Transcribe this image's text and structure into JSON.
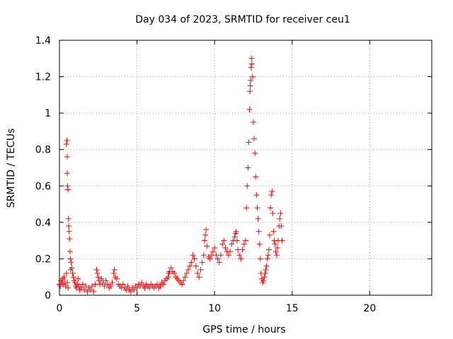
{
  "chart_data": {
    "type": "scatter",
    "title": "Day 034 of 2023, SRMTID for receiver ceu1",
    "xlabel": "GPS time / hours",
    "ylabel": "SRMTID / TECUs",
    "xlim": [
      0,
      24
    ],
    "ylim": [
      0,
      1.4
    ],
    "x_ticks": [
      0,
      5,
      10,
      15,
      20
    ],
    "y_ticks": [
      0,
      0.2,
      0.4,
      0.6,
      0.8,
      1,
      1.2,
      1.4
    ],
    "x_tick_labels": [
      "0",
      "5",
      "10",
      "15",
      "20"
    ],
    "y_tick_labels": [
      "0",
      "0.2",
      "0.4",
      "0.6",
      "0.8",
      "1",
      "1.2",
      "1.4"
    ],
    "grid": true,
    "marker": "plus",
    "series": [
      {
        "name": "SRMTID",
        "color": "#ff0000",
        "points": [
          [
            0.0,
            0.06
          ],
          [
            0.05,
            0.05
          ],
          [
            0.1,
            0.08
          ],
          [
            0.15,
            0.07
          ],
          [
            0.2,
            0.09
          ],
          [
            0.25,
            0.06
          ],
          [
            0.3,
            0.1
          ],
          [
            0.35,
            0.07
          ],
          [
            0.4,
            0.05
          ],
          [
            0.45,
            0.12
          ],
          [
            0.5,
            0.07
          ],
          [
            0.55,
            0.04
          ],
          [
            0.45,
            0.83
          ],
          [
            0.48,
            0.85
          ],
          [
            0.5,
            0.76
          ],
          [
            0.5,
            0.67
          ],
          [
            0.52,
            0.6
          ],
          [
            0.55,
            0.58
          ],
          [
            0.58,
            0.42
          ],
          [
            0.6,
            0.38
          ],
          [
            0.62,
            0.35
          ],
          [
            0.65,
            0.31
          ],
          [
            0.68,
            0.24
          ],
          [
            0.7,
            0.2
          ],
          [
            0.72,
            0.14
          ],
          [
            0.75,
            0.18
          ],
          [
            0.8,
            0.15
          ],
          [
            0.85,
            0.12
          ],
          [
            0.9,
            0.1
          ],
          [
            0.95,
            0.08
          ],
          [
            1.0,
            0.07
          ],
          [
            1.05,
            0.05
          ],
          [
            1.1,
            0.04
          ],
          [
            1.15,
            0.06
          ],
          [
            1.2,
            0.09
          ],
          [
            1.25,
            0.05
          ],
          [
            1.3,
            0.03
          ],
          [
            1.4,
            0.04
          ],
          [
            1.5,
            0.06
          ],
          [
            1.6,
            0.03
          ],
          [
            1.7,
            0.05
          ],
          [
            1.8,
            0.02
          ],
          [
            1.9,
            0.04
          ],
          [
            2.0,
            0.03
          ],
          [
            2.1,
            0.05
          ],
          [
            2.2,
            0.02
          ],
          [
            2.3,
            0.06
          ],
          [
            2.4,
            0.14
          ],
          [
            2.45,
            0.12
          ],
          [
            2.5,
            0.1
          ],
          [
            2.55,
            0.08
          ],
          [
            2.6,
            0.06
          ],
          [
            2.7,
            0.09
          ],
          [
            2.8,
            0.07
          ],
          [
            2.9,
            0.05
          ],
          [
            3.0,
            0.08
          ],
          [
            3.1,
            0.06
          ],
          [
            3.2,
            0.04
          ],
          [
            3.3,
            0.05
          ],
          [
            3.4,
            0.07
          ],
          [
            3.5,
            0.12
          ],
          [
            3.55,
            0.14
          ],
          [
            3.6,
            0.1
          ],
          [
            3.7,
            0.09
          ],
          [
            3.8,
            0.06
          ],
          [
            3.9,
            0.05
          ],
          [
            4.0,
            0.04
          ],
          [
            4.1,
            0.06
          ],
          [
            4.2,
            0.04
          ],
          [
            4.3,
            0.03
          ],
          [
            4.4,
            0.05
          ],
          [
            4.5,
            0.03
          ],
          [
            4.6,
            0.02
          ],
          [
            4.7,
            0.04
          ],
          [
            4.8,
            0.03
          ],
          [
            4.9,
            0.05
          ],
          [
            5.0,
            0.04
          ],
          [
            5.1,
            0.06
          ],
          [
            5.2,
            0.05
          ],
          [
            5.3,
            0.07
          ],
          [
            5.4,
            0.05
          ],
          [
            5.5,
            0.04
          ],
          [
            5.6,
            0.06
          ],
          [
            5.7,
            0.05
          ],
          [
            5.8,
            0.04
          ],
          [
            5.9,
            0.06
          ],
          [
            6.0,
            0.05
          ],
          [
            6.1,
            0.04
          ],
          [
            6.2,
            0.05
          ],
          [
            6.3,
            0.06
          ],
          [
            6.4,
            0.04
          ],
          [
            6.5,
            0.05
          ],
          [
            6.6,
            0.07
          ],
          [
            6.7,
            0.06
          ],
          [
            6.8,
            0.08
          ],
          [
            6.9,
            0.09
          ],
          [
            7.0,
            0.1
          ],
          [
            7.05,
            0.12
          ],
          [
            7.1,
            0.13
          ],
          [
            7.2,
            0.15
          ],
          [
            7.3,
            0.13
          ],
          [
            7.4,
            0.12
          ],
          [
            7.5,
            0.1
          ],
          [
            7.6,
            0.09
          ],
          [
            7.7,
            0.08
          ],
          [
            7.8,
            0.07
          ],
          [
            7.9,
            0.06
          ],
          [
            8.0,
            0.08
          ],
          [
            8.1,
            0.1
          ],
          [
            8.2,
            0.12
          ],
          [
            8.3,
            0.14
          ],
          [
            8.4,
            0.16
          ],
          [
            8.5,
            0.18
          ],
          [
            8.6,
            0.22
          ],
          [
            8.7,
            0.2
          ],
          [
            8.8,
            0.16
          ],
          [
            8.9,
            0.12
          ],
          [
            9.0,
            0.1
          ],
          [
            9.1,
            0.14
          ],
          [
            9.2,
            0.18
          ],
          [
            9.3,
            0.22
          ],
          [
            9.35,
            0.3
          ],
          [
            9.4,
            0.33
          ],
          [
            9.45,
            0.36
          ],
          [
            9.5,
            0.27
          ],
          [
            9.6,
            0.21
          ],
          [
            9.7,
            0.2
          ],
          [
            9.8,
            0.22
          ],
          [
            9.9,
            0.24
          ],
          [
            10.0,
            0.26
          ],
          [
            10.1,
            0.22
          ],
          [
            10.2,
            0.2
          ],
          [
            10.3,
            0.18
          ],
          [
            10.4,
            0.22
          ],
          [
            10.5,
            0.28
          ],
          [
            10.6,
            0.3
          ],
          [
            10.7,
            0.26
          ],
          [
            10.8,
            0.24
          ],
          [
            10.9,
            0.22
          ],
          [
            11.0,
            0.24
          ],
          [
            11.1,
            0.28
          ],
          [
            11.2,
            0.3
          ],
          [
            11.3,
            0.32
          ],
          [
            11.35,
            0.34
          ],
          [
            11.4,
            0.35
          ],
          [
            11.45,
            0.3
          ],
          [
            11.5,
            0.25
          ],
          [
            11.6,
            0.22
          ],
          [
            11.7,
            0.2
          ],
          [
            11.8,
            0.25
          ],
          [
            11.9,
            0.28
          ],
          [
            12.0,
            0.3
          ],
          [
            12.05,
            0.48
          ],
          [
            12.1,
            0.6
          ],
          [
            12.15,
            0.7
          ],
          [
            12.2,
            0.84
          ],
          [
            12.25,
            1.02
          ],
          [
            12.28,
            1.12
          ],
          [
            12.3,
            1.15
          ],
          [
            12.32,
            1.18
          ],
          [
            12.35,
            1.25
          ],
          [
            12.38,
            1.3
          ],
          [
            12.4,
            1.27
          ],
          [
            12.45,
            1.2
          ],
          [
            12.5,
            0.95
          ],
          [
            12.55,
            0.86
          ],
          [
            12.6,
            0.78
          ],
          [
            12.65,
            0.65
          ],
          [
            12.7,
            0.55
          ],
          [
            12.75,
            0.48
          ],
          [
            12.8,
            0.42
          ],
          [
            12.85,
            0.35
          ],
          [
            12.9,
            0.28
          ],
          [
            12.95,
            0.2
          ],
          [
            13.0,
            0.12
          ],
          [
            13.05,
            0.09
          ],
          [
            13.1,
            0.07
          ],
          [
            13.15,
            0.08
          ],
          [
            13.2,
            0.1
          ],
          [
            13.25,
            0.12
          ],
          [
            13.3,
            0.14
          ],
          [
            13.35,
            0.16
          ],
          [
            13.4,
            0.2
          ],
          [
            13.45,
            0.22
          ],
          [
            13.5,
            0.25
          ],
          [
            13.55,
            0.33
          ],
          [
            13.6,
            0.48
          ],
          [
            13.65,
            0.55
          ],
          [
            13.7,
            0.57
          ],
          [
            13.75,
            0.45
          ],
          [
            13.8,
            0.35
          ],
          [
            13.85,
            0.3
          ],
          [
            13.9,
            0.28
          ],
          [
            13.95,
            0.24
          ],
          [
            14.0,
            0.22
          ],
          [
            14.05,
            0.26
          ],
          [
            14.1,
            0.3
          ],
          [
            14.15,
            0.38
          ],
          [
            14.2,
            0.42
          ],
          [
            14.25,
            0.45
          ],
          [
            14.3,
            0.38
          ],
          [
            14.35,
            0.3
          ]
        ]
      }
    ]
  }
}
